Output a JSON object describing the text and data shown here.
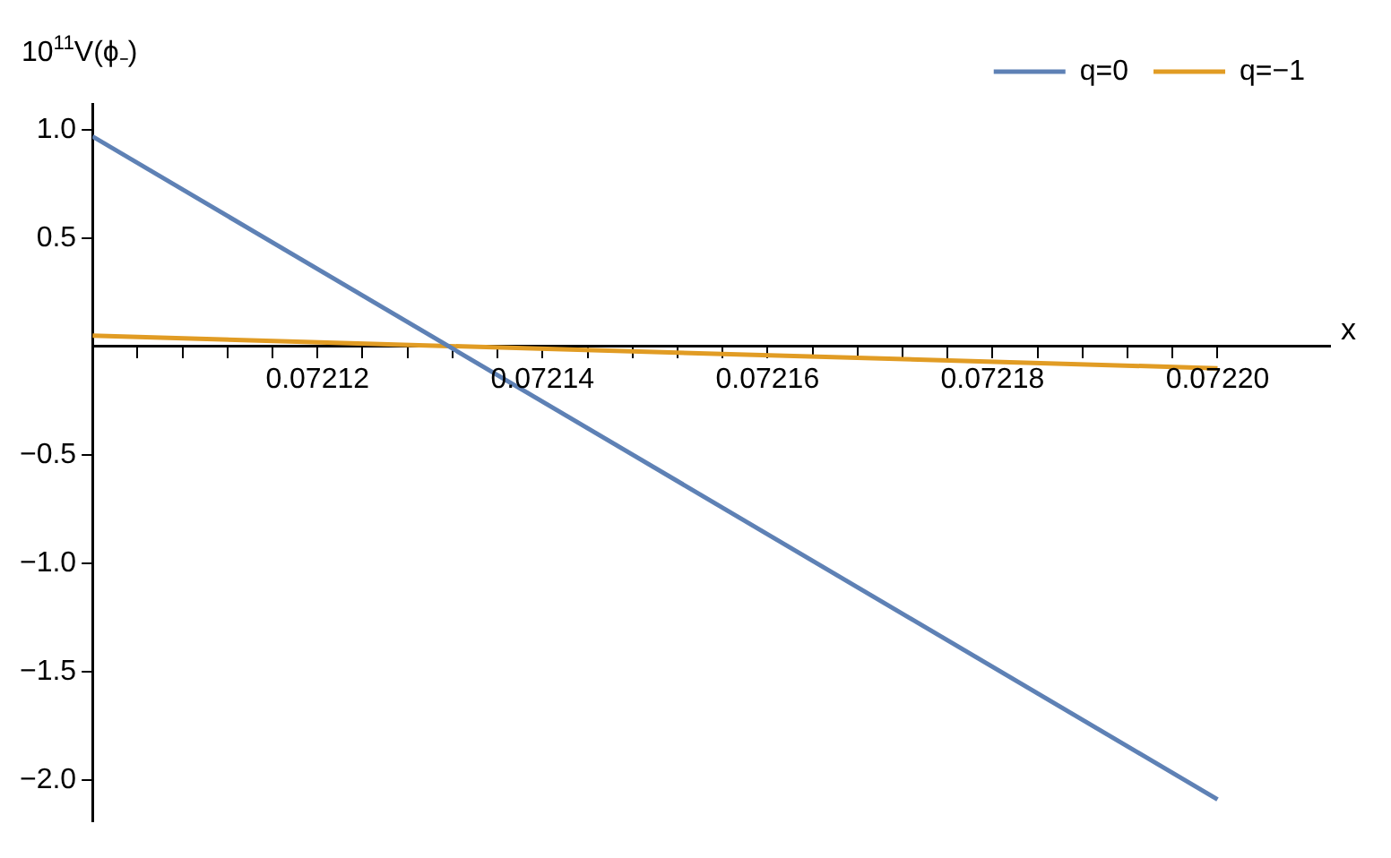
{
  "chart_data": {
    "type": "line",
    "ylabel": "10$^{11}$V(ϕ₋)",
    "xlabel": "x",
    "x": [
      0.0721,
      0.0722
    ],
    "series": [
      {
        "name": "q=0",
        "color": "#5e81b5",
        "values": [
          0.97,
          -2.09
        ]
      },
      {
        "name": "q=−1",
        "color": "#e19c24",
        "values": [
          0.05,
          -0.1
        ]
      }
    ],
    "xlim": [
      0.0721,
      0.07221
    ],
    "xticks": [
      {
        "value": 0.072104,
        "label": null
      },
      {
        "value": 0.072108,
        "label": null
      },
      {
        "value": 0.072112,
        "label": null
      },
      {
        "value": 0.072116,
        "label": null
      },
      0.07212,
      {
        "value": 0.072124,
        "label": null
      },
      {
        "value": 0.072128,
        "label": null
      },
      {
        "value": 0.072132,
        "label": null
      },
      {
        "value": 0.072136,
        "label": null
      },
      0.07214,
      {
        "value": 0.072144,
        "label": null
      },
      {
        "value": 0.072148,
        "label": null
      },
      {
        "value": 0.072152,
        "label": null
      },
      {
        "value": 0.072156,
        "label": null
      },
      0.07216,
      {
        "value": 0.072164,
        "label": null
      },
      {
        "value": 0.072168,
        "label": null
      },
      {
        "value": 0.072172,
        "label": null
      },
      {
        "value": 0.072176,
        "label": null
      },
      0.07218,
      {
        "value": 0.072184,
        "label": null
      },
      {
        "value": 0.072188,
        "label": null
      },
      {
        "value": 0.072192,
        "label": null
      },
      {
        "value": 0.072196,
        "label": null
      },
      {
        "value": 0.0722,
        "label": "0.07220"
      }
    ],
    "ylim": [
      -2.19,
      1.12
    ],
    "yticks": [
      {
        "value": -2,
        "label": "−2.0"
      },
      {
        "value": -1.5,
        "label": "−1.5"
      },
      {
        "value": -1,
        "label": "−1.0"
      },
      {
        "value": -0.5,
        "label": "−0.5"
      },
      {
        "value": 0.5,
        "label": "0.5"
      },
      {
        "value": 1,
        "label": "1.0"
      }
    ],
    "legend": "top right",
    "line_style": "solid",
    "marker": "none",
    "grid": false
  }
}
